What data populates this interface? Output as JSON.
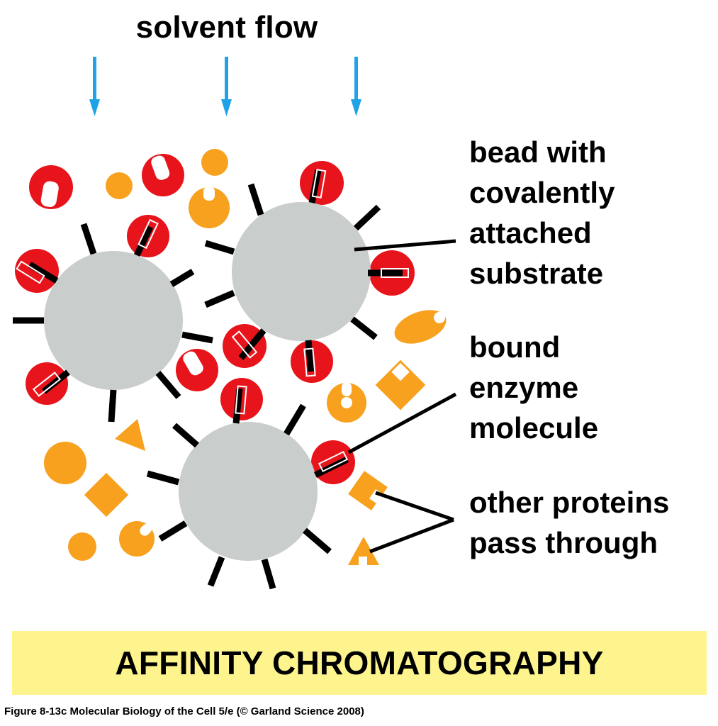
{
  "title": "solvent flow",
  "labels": {
    "bead": [
      "bead with",
      "covalently",
      "attached",
      "substrate"
    ],
    "enzyme": [
      "bound",
      "enzyme",
      "molecule"
    ],
    "proteins": [
      "other proteins",
      "pass through"
    ]
  },
  "banner": "AFFINITY CHROMATOGRAPHY",
  "caption": "Figure 8-13c  Molecular Biology of the Cell 5/e (© Garland Science 2008)",
  "colors": {
    "bead": "#c9cdcb",
    "enzyme": "#e8141c",
    "protein": "#f7a11e",
    "arrow": "#1fa2e6",
    "banner": "#fdf48d"
  }
}
